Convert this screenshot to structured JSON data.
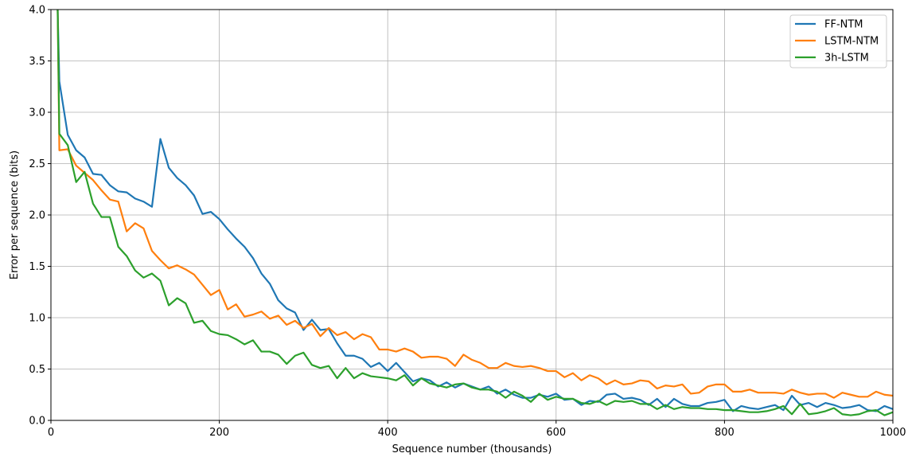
{
  "chart_data": {
    "type": "line",
    "title": "",
    "xlabel": "Sequence number (thousands)",
    "ylabel": "Error per sequence (bits)",
    "xlim": [
      0,
      1000
    ],
    "ylim": [
      0,
      4.0
    ],
    "xticks": [
      0,
      200,
      400,
      600,
      800,
      1000
    ],
    "yticks": [
      0.0,
      0.5,
      1.0,
      1.5,
      2.0,
      2.5,
      3.0,
      3.5,
      4.0
    ],
    "grid": true,
    "legend_position": "top-right",
    "colors": {
      "FF-NTM": "#1f77b4",
      "LSTM-NTM": "#ff7f0e",
      "3h-LSTM": "#2ca02c"
    },
    "series": [
      {
        "name": "FF-NTM",
        "color": "#1f77b4",
        "x": [
          8,
          10,
          20,
          30,
          40,
          50,
          60,
          70,
          80,
          90,
          100,
          110,
          120,
          130,
          140,
          150,
          160,
          170,
          180,
          190,
          200,
          210,
          220,
          230,
          240,
          250,
          260,
          270,
          280,
          290,
          300,
          310,
          320,
          330,
          340,
          350,
          360,
          370,
          380,
          390,
          400,
          410,
          420,
          430,
          440,
          450,
          460,
          470,
          480,
          490,
          500,
          510,
          520,
          530,
          540,
          550,
          560,
          570,
          580,
          590,
          600,
          610,
          620,
          630,
          640,
          650,
          660,
          670,
          680,
          690,
          700,
          710,
          720,
          730,
          740,
          750,
          760,
          770,
          780,
          790,
          800,
          810,
          820,
          830,
          840,
          850,
          860,
          870,
          880,
          890,
          900,
          910,
          920,
          930,
          940,
          950,
          960,
          970,
          980,
          990,
          1000
        ],
        "y": [
          4.0,
          3.3,
          2.78,
          2.63,
          2.56,
          2.4,
          2.39,
          2.29,
          2.23,
          2.22,
          2.16,
          2.13,
          2.08,
          2.74,
          2.46,
          2.36,
          2.29,
          2.19,
          2.01,
          2.03,
          1.96,
          1.86,
          1.77,
          1.69,
          1.58,
          1.43,
          1.33,
          1.17,
          1.09,
          1.05,
          0.88,
          0.98,
          0.88,
          0.89,
          0.75,
          0.63,
          0.63,
          0.6,
          0.52,
          0.56,
          0.48,
          0.56,
          0.47,
          0.38,
          0.41,
          0.39,
          0.33,
          0.37,
          0.32,
          0.36,
          0.33,
          0.3,
          0.33,
          0.26,
          0.3,
          0.25,
          0.22,
          0.22,
          0.25,
          0.23,
          0.26,
          0.2,
          0.21,
          0.15,
          0.19,
          0.18,
          0.25,
          0.26,
          0.21,
          0.22,
          0.2,
          0.15,
          0.21,
          0.13,
          0.21,
          0.16,
          0.14,
          0.14,
          0.17,
          0.18,
          0.2,
          0.09,
          0.14,
          0.12,
          0.11,
          0.13,
          0.15,
          0.1,
          0.24,
          0.15,
          0.17,
          0.13,
          0.17,
          0.15,
          0.12,
          0.13,
          0.15,
          0.1,
          0.09,
          0.14,
          0.11
        ]
      },
      {
        "name": "LSTM-NTM",
        "color": "#ff7f0e",
        "x": [
          8,
          10,
          20,
          30,
          40,
          50,
          60,
          70,
          80,
          90,
          100,
          110,
          120,
          130,
          140,
          150,
          160,
          170,
          180,
          190,
          200,
          210,
          220,
          230,
          240,
          250,
          260,
          270,
          280,
          290,
          300,
          310,
          320,
          330,
          340,
          350,
          360,
          370,
          380,
          390,
          400,
          410,
          420,
          430,
          440,
          450,
          460,
          470,
          480,
          490,
          500,
          510,
          520,
          530,
          540,
          550,
          560,
          570,
          580,
          590,
          600,
          610,
          620,
          630,
          640,
          650,
          660,
          670,
          680,
          690,
          700,
          710,
          720,
          730,
          740,
          750,
          760,
          770,
          780,
          790,
          800,
          810,
          820,
          830,
          840,
          850,
          860,
          870,
          880,
          890,
          900,
          910,
          920,
          930,
          940,
          950,
          960,
          970,
          980,
          990,
          1000
        ],
        "y": [
          4.0,
          2.63,
          2.64,
          2.48,
          2.41,
          2.34,
          2.24,
          2.15,
          2.13,
          1.84,
          1.92,
          1.87,
          1.65,
          1.56,
          1.48,
          1.51,
          1.47,
          1.42,
          1.32,
          1.22,
          1.27,
          1.08,
          1.13,
          1.01,
          1.03,
          1.06,
          0.99,
          1.02,
          0.93,
          0.97,
          0.9,
          0.94,
          0.82,
          0.9,
          0.83,
          0.86,
          0.79,
          0.84,
          0.81,
          0.69,
          0.69,
          0.67,
          0.7,
          0.67,
          0.61,
          0.62,
          0.62,
          0.6,
          0.53,
          0.64,
          0.59,
          0.56,
          0.51,
          0.51,
          0.56,
          0.53,
          0.52,
          0.53,
          0.51,
          0.48,
          0.48,
          0.42,
          0.46,
          0.39,
          0.44,
          0.41,
          0.35,
          0.39,
          0.35,
          0.36,
          0.39,
          0.38,
          0.31,
          0.34,
          0.33,
          0.35,
          0.26,
          0.27,
          0.33,
          0.35,
          0.35,
          0.28,
          0.28,
          0.3,
          0.27,
          0.27,
          0.27,
          0.26,
          0.3,
          0.27,
          0.25,
          0.26,
          0.26,
          0.22,
          0.27,
          0.25,
          0.23,
          0.23,
          0.28,
          0.25,
          0.24
        ]
      },
      {
        "name": "3h-LSTM",
        "color": "#2ca02c",
        "x": [
          8,
          10,
          20,
          30,
          40,
          50,
          60,
          70,
          80,
          90,
          100,
          110,
          120,
          130,
          140,
          150,
          160,
          170,
          180,
          190,
          200,
          210,
          220,
          230,
          240,
          250,
          260,
          270,
          280,
          290,
          300,
          310,
          320,
          330,
          340,
          350,
          360,
          370,
          380,
          390,
          400,
          410,
          420,
          430,
          440,
          450,
          460,
          470,
          480,
          490,
          500,
          510,
          520,
          530,
          540,
          550,
          560,
          570,
          580,
          590,
          600,
          610,
          620,
          630,
          640,
          650,
          660,
          670,
          680,
          690,
          700,
          710,
          720,
          730,
          740,
          750,
          760,
          770,
          780,
          790,
          800,
          810,
          820,
          830,
          840,
          850,
          860,
          870,
          880,
          890,
          900,
          910,
          920,
          930,
          940,
          950,
          960,
          970,
          980,
          990,
          1000
        ],
        "y": [
          4.0,
          2.79,
          2.68,
          2.32,
          2.42,
          2.11,
          1.98,
          1.98,
          1.69,
          1.6,
          1.46,
          1.39,
          1.43,
          1.36,
          1.12,
          1.19,
          1.14,
          0.95,
          0.97,
          0.87,
          0.84,
          0.83,
          0.79,
          0.74,
          0.78,
          0.67,
          0.67,
          0.64,
          0.55,
          0.63,
          0.66,
          0.54,
          0.51,
          0.53,
          0.41,
          0.51,
          0.41,
          0.46,
          0.43,
          0.42,
          0.41,
          0.39,
          0.44,
          0.34,
          0.41,
          0.36,
          0.34,
          0.32,
          0.35,
          0.36,
          0.32,
          0.3,
          0.3,
          0.28,
          0.22,
          0.28,
          0.24,
          0.18,
          0.26,
          0.2,
          0.23,
          0.21,
          0.21,
          0.17,
          0.16,
          0.19,
          0.15,
          0.19,
          0.18,
          0.19,
          0.16,
          0.16,
          0.11,
          0.15,
          0.11,
          0.13,
          0.12,
          0.12,
          0.11,
          0.11,
          0.1,
          0.1,
          0.09,
          0.08,
          0.08,
          0.09,
          0.11,
          0.14,
          0.06,
          0.16,
          0.06,
          0.07,
          0.09,
          0.12,
          0.06,
          0.05,
          0.06,
          0.09,
          0.1,
          0.05,
          0.08
        ]
      }
    ]
  }
}
